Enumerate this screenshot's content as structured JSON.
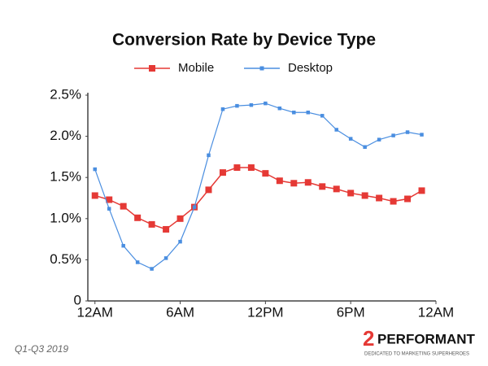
{
  "chart_data": {
    "type": "line",
    "title": "Conversion Rate by Device Type",
    "x": [
      0,
      1,
      2,
      3,
      4,
      5,
      6,
      7,
      8,
      9,
      10,
      11,
      12,
      13,
      14,
      15,
      16,
      17,
      18,
      19,
      20,
      21,
      22,
      23
    ],
    "series": [
      {
        "name": "Mobile",
        "color": "#e53935",
        "values": [
          1.28,
          1.23,
          1.15,
          1.01,
          0.93,
          0.87,
          1.0,
          1.14,
          1.35,
          1.56,
          1.62,
          1.62,
          1.55,
          1.46,
          1.43,
          1.44,
          1.39,
          1.36,
          1.31,
          1.28,
          1.25,
          1.21,
          1.24,
          1.34
        ]
      },
      {
        "name": "Desktop",
        "color": "#4a8ee0",
        "values": [
          1.6,
          1.12,
          0.67,
          0.47,
          0.39,
          0.52,
          0.72,
          1.14,
          1.77,
          2.33,
          2.37,
          2.38,
          2.4,
          2.34,
          2.29,
          2.29,
          2.25,
          2.08,
          1.97,
          1.87,
          1.96,
          2.01,
          2.05,
          2.02
        ]
      }
    ],
    "xlim": [
      -0.5,
      24
    ],
    "xticks": [
      {
        "value": 0,
        "label": "12AM"
      },
      {
        "value": 6,
        "label": "6AM"
      },
      {
        "value": 12,
        "label": "12PM"
      },
      {
        "value": 18,
        "label": "6PM"
      },
      {
        "value": 24,
        "label": "12AM"
      }
    ],
    "ylim": [
      0,
      2.5
    ],
    "yticks": [
      0,
      {
        "value": 0.5,
        "label": "0.5%"
      },
      {
        "value": 1.0,
        "label": "1.0%"
      },
      {
        "value": 1.5,
        "label": "1.5%"
      },
      {
        "value": 2.0,
        "label": "2.0%"
      },
      {
        "value": 2.5,
        "label": "2.5%"
      }
    ],
    "grid": false,
    "legend": "top",
    "footnote": "Q1-Q3 2019",
    "brand": {
      "name": "PERFORMANT",
      "tagline": "DEDICATED TO MARKETING SUPERHEROES"
    }
  }
}
